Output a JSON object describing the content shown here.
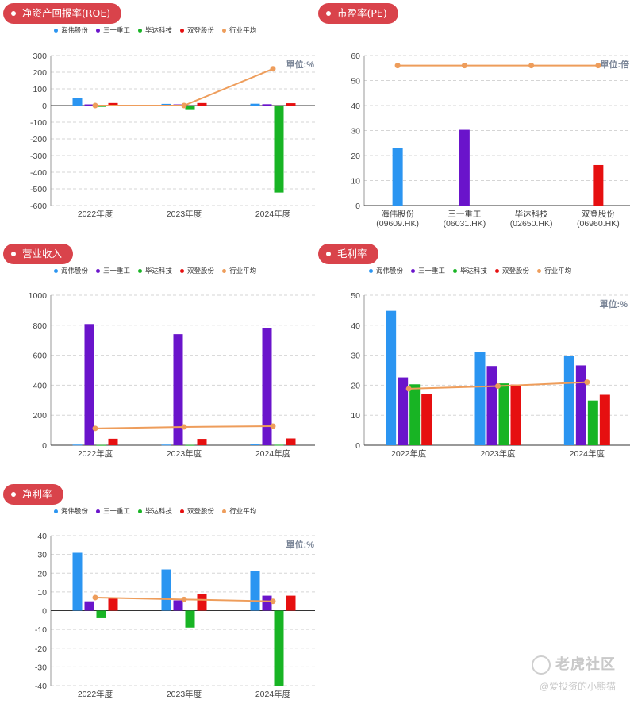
{
  "colors": {
    "haiwei": "#2b95f1",
    "sany": "#6a14cb",
    "bida": "#18b424",
    "shuangdeng": "#e60f10",
    "avg": "#ee9d5b",
    "badge": "#d9434b"
  },
  "legend": [
    "海伟股份",
    "三一重工",
    "毕达科技",
    "双登股份",
    "行业平均"
  ],
  "watermark": {
    "title": "老虎社区",
    "subtitle": "@爱投资的小熊猫"
  },
  "chart_data": [
    {
      "id": "roe",
      "title": "净资产回报率(ROE)",
      "type": "bar",
      "unit_label": "單位:%",
      "categories": [
        "2022年度",
        "2023年度",
        "2024年度"
      ],
      "ylim": [
        -600,
        300
      ],
      "yticks": [
        300,
        200,
        100,
        0,
        -100,
        -200,
        -300,
        -400,
        -500,
        -600
      ],
      "series": [
        {
          "name": "海伟股份",
          "values": [
            43,
            10,
            11
          ]
        },
        {
          "name": "三一重工",
          "values": [
            7,
            7,
            8
          ]
        },
        {
          "name": "毕达科技",
          "values": [
            -8,
            -22,
            -522
          ]
        },
        {
          "name": "双登股份",
          "values": [
            15,
            15,
            14
          ]
        }
      ],
      "line": {
        "name": "行业平均",
        "values": [
          0,
          0,
          220
        ]
      }
    },
    {
      "id": "pe",
      "title": "市盈率(PE)",
      "type": "bar",
      "unit_label": "單位:倍",
      "categories": [
        "海伟股份\n(09609.HK)",
        "三一重工\n(06031.HK)",
        "毕达科技\n(02650.HK)",
        "双登股份\n(06960.HK)"
      ],
      "ylim": [
        0,
        60
      ],
      "yticks": [
        60,
        50,
        40,
        30,
        20,
        10,
        0
      ],
      "values": [
        23,
        30.3,
        0,
        16.2
      ],
      "line": {
        "name": "行业平均",
        "values": [
          56,
          56,
          56,
          56
        ]
      }
    },
    {
      "id": "revenue",
      "title": "营业收入",
      "type": "bar",
      "unit_label": "",
      "categories": [
        "2022年度",
        "2023年度",
        "2024年度"
      ],
      "ylim": [
        0,
        1000
      ],
      "yticks": [
        1000,
        800,
        600,
        400,
        200,
        0
      ],
      "series": [
        {
          "name": "海伟股份",
          "values": [
            4,
            4,
            5
          ]
        },
        {
          "name": "三一重工",
          "values": [
            808,
            740,
            783
          ]
        },
        {
          "name": "毕达科技",
          "values": [
            2,
            2,
            3
          ]
        },
        {
          "name": "双登股份",
          "values": [
            43,
            42,
            45
          ]
        }
      ],
      "line": {
        "name": "行业平均",
        "values": [
          112,
          122,
          127
        ]
      }
    },
    {
      "id": "gross-margin",
      "title": "毛利率",
      "type": "bar",
      "unit_label": "單位:%",
      "categories": [
        "2022年度",
        "2023年度",
        "2024年度"
      ],
      "ylim": [
        0,
        50
      ],
      "yticks": [
        50,
        40,
        30,
        20,
        10,
        0
      ],
      "series": [
        {
          "name": "海伟股份",
          "values": [
            44.8,
            31.2,
            29.7
          ]
        },
        {
          "name": "三一重工",
          "values": [
            22.6,
            26.4,
            26.6
          ]
        },
        {
          "name": "毕达科技",
          "values": [
            20.3,
            20.6,
            14.9
          ]
        },
        {
          "name": "双登股份",
          "values": [
            17,
            20.2,
            16.8
          ]
        }
      ],
      "line": {
        "name": "行业平均",
        "values": [
          18.8,
          19.7,
          21
        ]
      }
    },
    {
      "id": "net-margin",
      "title": "净利率",
      "type": "bar",
      "unit_label": "單位:%",
      "categories": [
        "2022年度",
        "2023年度",
        "2024年度"
      ],
      "ylim": [
        -40,
        40
      ],
      "yticks": [
        40,
        30,
        20,
        10,
        0,
        -10,
        -20,
        -30,
        -40
      ],
      "series": [
        {
          "name": "海伟股份",
          "values": [
            30.9,
            22,
            21
          ]
        },
        {
          "name": "三一重工",
          "values": [
            5,
            5.5,
            8
          ]
        },
        {
          "name": "毕达科技",
          "values": [
            -4,
            -9,
            -40
          ]
        },
        {
          "name": "双登股份",
          "values": [
            6.5,
            9,
            8
          ]
        }
      ],
      "line": {
        "name": "行业平均",
        "values": [
          7,
          6,
          5
        ]
      }
    }
  ]
}
